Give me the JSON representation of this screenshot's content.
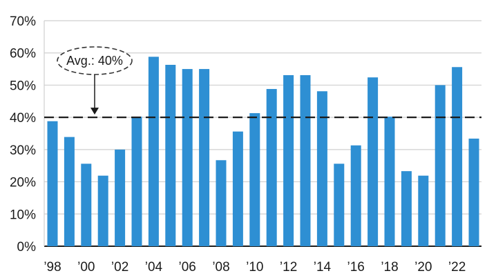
{
  "chart_data": {
    "type": "bar",
    "x": [
      1998,
      1999,
      2000,
      2001,
      2002,
      2003,
      2004,
      2005,
      2006,
      2007,
      2008,
      2009,
      2010,
      2011,
      2012,
      2013,
      2014,
      2015,
      2016,
      2017,
      2018,
      2019,
      2020,
      2021,
      2022,
      2023
    ],
    "values": [
      38.8,
      33.9,
      25.6,
      21.9,
      30.0,
      40.2,
      58.8,
      56.3,
      55.0,
      55.0,
      26.7,
      35.6,
      41.3,
      48.8,
      53.1,
      53.1,
      48.1,
      25.6,
      31.3,
      52.4,
      40.2,
      23.3,
      21.9,
      50.0,
      55.6,
      33.4
    ],
    "x_tick_labels": [
      "’98",
      "’00",
      "’02",
      "’04",
      "’06",
      "’08",
      "’10",
      "’12",
      "’14",
      "’16",
      "’18",
      "’20",
      "’22"
    ],
    "x_tick_years": [
      1998,
      2000,
      2002,
      2004,
      2006,
      2008,
      2010,
      2012,
      2014,
      2016,
      2018,
      2020,
      2022
    ],
    "y_tick_labels": [
      "0%",
      "10%",
      "20%",
      "30%",
      "40%",
      "50%",
      "60%",
      "70%"
    ],
    "y_ticks": [
      0,
      10,
      20,
      30,
      40,
      50,
      60,
      70
    ],
    "ylim": [
      0,
      70
    ],
    "grid": true,
    "average": 40,
    "average_label": "Avg.: 40%",
    "bar_color": "#2e8fd3",
    "grid_color": "#cfcfcf",
    "average_line_color": "#1a1a1a"
  }
}
